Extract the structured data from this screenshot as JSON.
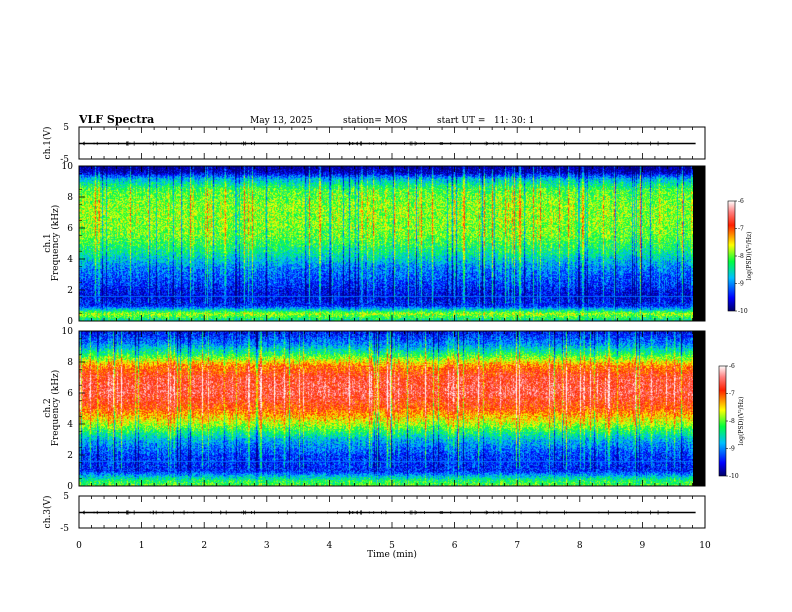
{
  "header": {
    "title": "VLF Spectra",
    "date": "May 13, 2025",
    "station": "station= MOS",
    "start": "start UT =   11: 30: 1"
  },
  "chart_data": [
    {
      "type": "line",
      "name": "ch1-waveform",
      "ylabel": "ch.1(V)",
      "xlim": [
        0,
        10
      ],
      "ylim": [
        -5,
        5
      ],
      "yticks": [
        "5",
        "-5"
      ],
      "level": 0,
      "data_end_min": 9.85
    },
    {
      "type": "heatmap",
      "name": "ch1-spectrogram",
      "ylabel": "ch.1",
      "ylabel2": "Frequency (kHz)",
      "xlim": [
        0,
        10
      ],
      "ylim": [
        0,
        10
      ],
      "yticks": [
        "0",
        "2",
        "4",
        "6",
        "8",
        "10"
      ],
      "data_end_min": 9.85,
      "colorbar": {
        "label": "log(PSD)(V²/Hz)",
        "range": [
          -10,
          -6
        ],
        "ticks": [
          "-6",
          "-7",
          "-8",
          "-9",
          "-10"
        ]
      },
      "profile_khz": [
        [
          0,
          -8.6
        ],
        [
          0.5,
          -7.8
        ],
        [
          1.0,
          -9.4
        ],
        [
          1.6,
          -9.6
        ],
        [
          2.5,
          -9.3
        ],
        [
          3.5,
          -9.0
        ],
        [
          4.5,
          -8.4
        ],
        [
          5.5,
          -8.0
        ],
        [
          6.5,
          -7.9
        ],
        [
          7.5,
          -7.9
        ],
        [
          8.5,
          -8.1
        ],
        [
          9.2,
          -8.8
        ],
        [
          9.6,
          -9.7
        ],
        [
          10,
          -10
        ]
      ]
    },
    {
      "type": "heatmap",
      "name": "ch2-spectrogram",
      "ylabel": "ch.2",
      "ylabel2": "Frequency (kHz)",
      "xlim": [
        0,
        10
      ],
      "ylim": [
        0,
        10
      ],
      "yticks": [
        "0",
        "2",
        "4",
        "6",
        "8",
        "10"
      ],
      "data_end_min": 9.85,
      "colorbar": {
        "label": "log(PSD)(V²/Hz)",
        "range": [
          -10,
          -6
        ],
        "ticks": [
          "-6",
          "-7",
          "-8",
          "-9",
          "-10"
        ]
      },
      "profile_khz": [
        [
          0,
          -8.0
        ],
        [
          0.4,
          -8.3
        ],
        [
          1.0,
          -9.4
        ],
        [
          2.0,
          -9.3
        ],
        [
          3.0,
          -8.8
        ],
        [
          4.0,
          -7.8
        ],
        [
          5.0,
          -7.0
        ],
        [
          6.0,
          -6.6
        ],
        [
          7.0,
          -6.7
        ],
        [
          7.8,
          -7.2
        ],
        [
          8.5,
          -8.2
        ],
        [
          9.2,
          -9.0
        ],
        [
          10,
          -9.5
        ]
      ]
    },
    {
      "type": "line",
      "name": "ch3-waveform",
      "ylabel": "ch.3(V)",
      "xlim": [
        0,
        10
      ],
      "ylim": [
        -5,
        5
      ],
      "yticks": [
        "5",
        "-5"
      ],
      "level": 0,
      "data_end_min": 9.85
    }
  ],
  "xaxis": {
    "label": "Time (min)",
    "ticks": [
      "0",
      "1",
      "2",
      "3",
      "4",
      "5",
      "6",
      "7",
      "8",
      "9",
      "10"
    ]
  }
}
